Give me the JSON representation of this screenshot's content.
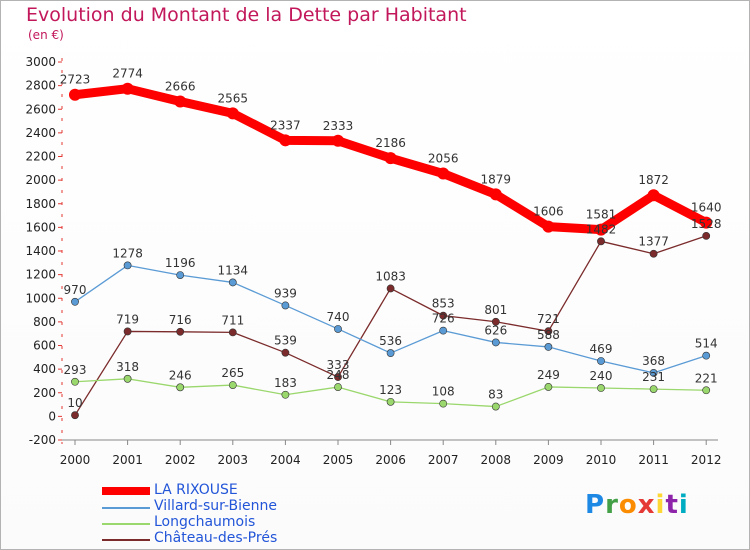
{
  "chart_data": {
    "type": "line",
    "title": "Evolution du Montant de la Dette par Habitant",
    "subtitle": "(en €)",
    "categories": [
      "2000",
      "2001",
      "2002",
      "2003",
      "2004",
      "2005",
      "2006",
      "2007",
      "2008",
      "2009",
      "2010",
      "2011",
      "2012"
    ],
    "ylim": [
      -200,
      3000
    ],
    "yticks": [
      -200,
      0,
      200,
      400,
      600,
      800,
      1000,
      1200,
      1400,
      1600,
      1800,
      2000,
      2200,
      2400,
      2600,
      2800,
      3000
    ],
    "grid": false,
    "legend_position": "bottom-left",
    "series": [
      {
        "name": "LA RIXOUSE",
        "color": "#ff0000",
        "values": [
          2723,
          2774,
          2666,
          2565,
          2337,
          2333,
          2186,
          2056,
          1879,
          1606,
          1581,
          1872,
          1640
        ]
      },
      {
        "name": "Villard-sur-Bienne",
        "color": "#5b9bd5",
        "values": [
          970,
          1278,
          1196,
          1134,
          939,
          740,
          536,
          726,
          626,
          588,
          469,
          368,
          514
        ]
      },
      {
        "name": "Longchaumois",
        "color": "#9ad76c",
        "values": [
          293,
          318,
          246,
          265,
          183,
          248,
          123,
          108,
          83,
          249,
          240,
          231,
          221
        ]
      },
      {
        "name": "Château-des-Prés",
        "color": "#7b2b2b",
        "values": [
          10,
          719,
          716,
          711,
          539,
          333,
          1083,
          853,
          801,
          721,
          1482,
          1377,
          1528
        ]
      }
    ]
  },
  "logo": {
    "text": "Proxiti"
  }
}
